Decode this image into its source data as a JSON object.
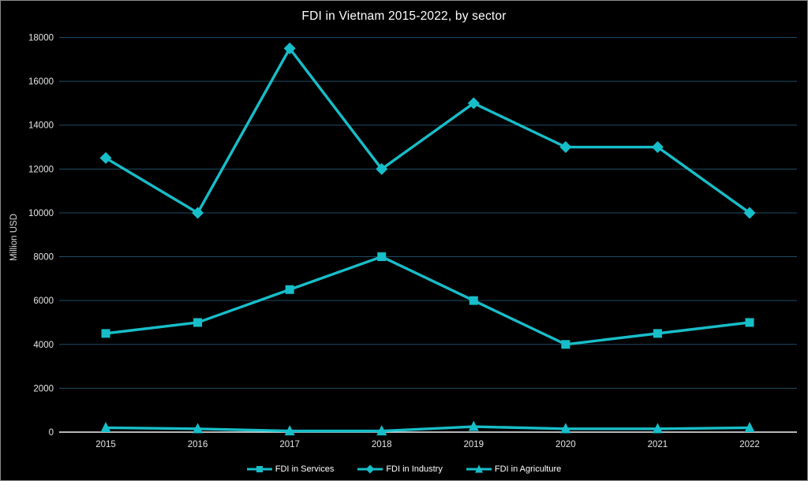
{
  "window": {
    "background": "#000000",
    "border_color": "#8a8a8a"
  },
  "chart_data": {
    "type": "line",
    "title": "FDI in Vietnam 2015-2022, by sector",
    "xlabel": "",
    "ylabel": "Million USD",
    "x": [
      "2015",
      "2016",
      "2017",
      "2018",
      "2019",
      "2020",
      "2021",
      "2022"
    ],
    "series": [
      {
        "name": "FDI in Services",
        "marker": "square",
        "values": [
          4500,
          5000,
          6500,
          8000,
          6000,
          4000,
          4500,
          5000
        ]
      },
      {
        "name": "FDI in Industry",
        "marker": "diamond",
        "values": [
          12500,
          10000,
          17500,
          12000,
          15000,
          13000,
          13000,
          10000
        ]
      },
      {
        "name": "FDI in Agriculture",
        "marker": "triangle",
        "values": [
          200,
          150,
          50,
          50,
          250,
          150,
          150,
          200
        ]
      }
    ],
    "ylim": [
      0,
      18000
    ],
    "yticks": [
      0,
      2000,
      4000,
      6000,
      8000,
      10000,
      12000,
      14000,
      16000,
      18000
    ],
    "grid": true,
    "legend_position": "bottom",
    "colors": {
      "series": "#17BEC9",
      "grid": "#1E4B66",
      "axis_line": "#f2f2f2",
      "tick_text": "#e6e6e6",
      "title_text": "#ffffff"
    }
  }
}
